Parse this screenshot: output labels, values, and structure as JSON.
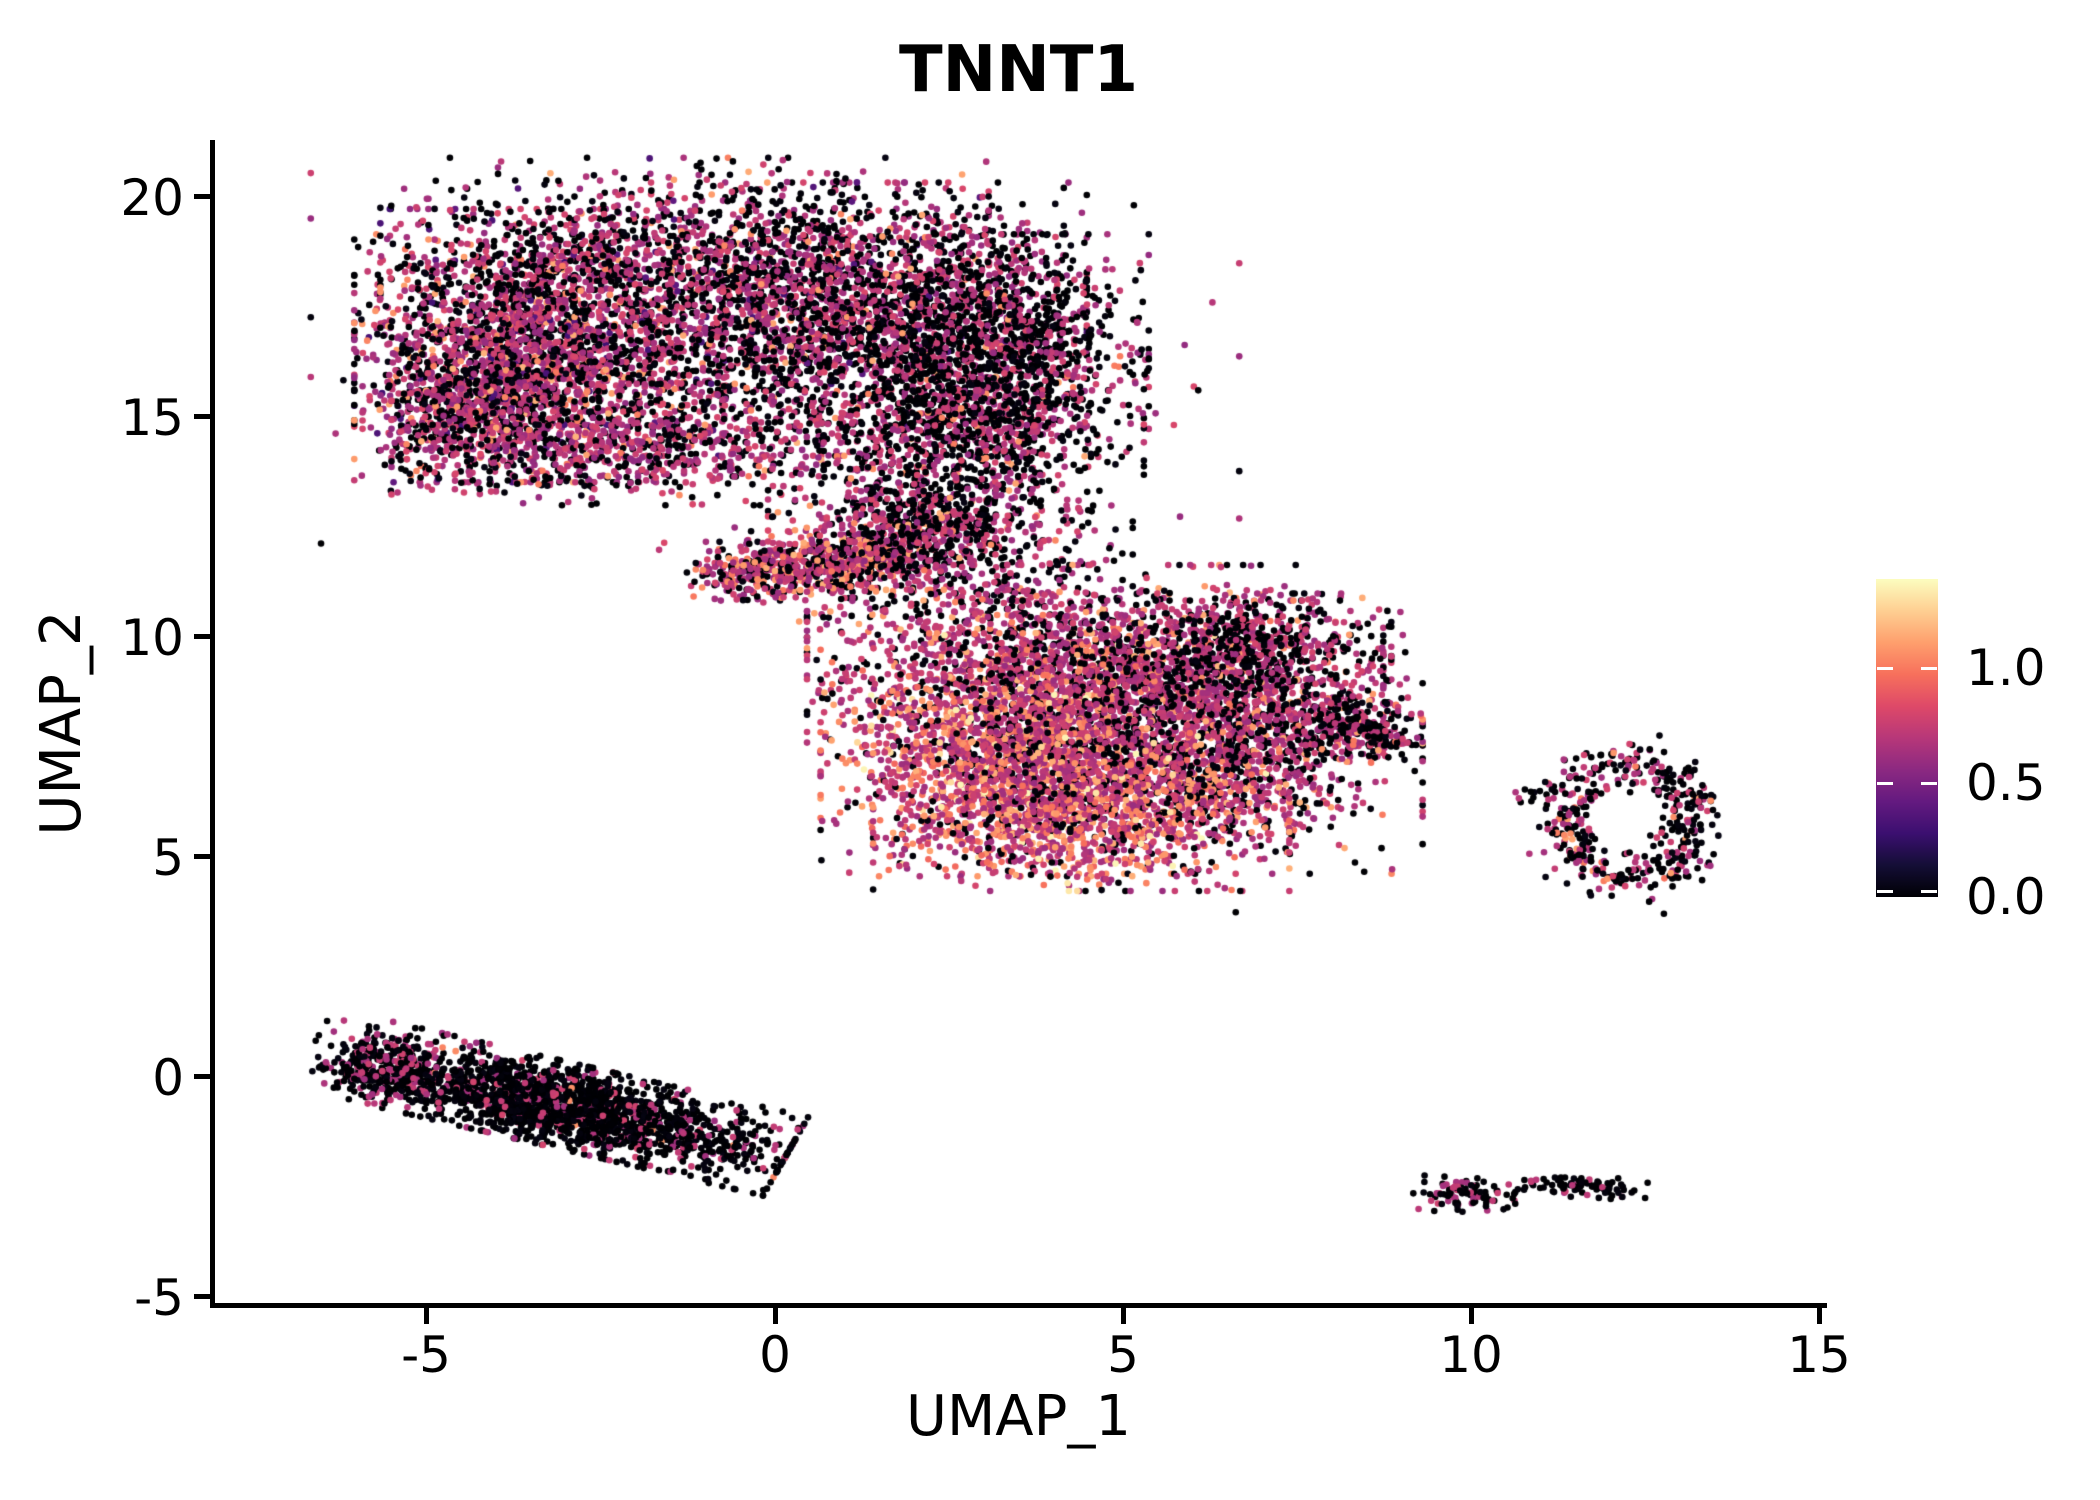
{
  "title": "TNNT1",
  "axes": {
    "x": {
      "label": "UMAP_1",
      "ticks": [
        "-5",
        "0",
        "5",
        "10",
        "15"
      ]
    },
    "y": {
      "label": "UMAP_2",
      "ticks": [
        "20",
        "15",
        "10",
        "5",
        "0",
        "-5"
      ]
    }
  },
  "legend": {
    "labels": [
      "1.0",
      "0.5",
      "0.0"
    ]
  },
  "chart_data": {
    "type": "scatter",
    "title": "TNNT1",
    "xlabel": "UMAP_1",
    "ylabel": "UMAP_2",
    "xlim": [
      -8.1,
      15.1
    ],
    "ylim": [
      -5.2,
      21.3
    ],
    "x_ticks": [
      -5,
      0,
      5,
      10,
      15
    ],
    "y_ticks": [
      -5,
      0,
      5,
      10,
      15,
      20
    ],
    "grid": false,
    "legend_position": "right",
    "colorbar": {
      "label_values": [
        1.0,
        0.5,
        0.0
      ],
      "vmax": 1.39,
      "colormap": "magma",
      "colormap_stops": [
        [
          0.0,
          "#000004"
        ],
        [
          0.1,
          "#140e36"
        ],
        [
          0.2,
          "#3b0f70"
        ],
        [
          0.3,
          "#641a80"
        ],
        [
          0.4,
          "#8c2981"
        ],
        [
          0.5,
          "#b73779"
        ],
        [
          0.6,
          "#de4968"
        ],
        [
          0.7,
          "#f7705c"
        ],
        [
          0.8,
          "#fe9f6d"
        ],
        [
          0.9,
          "#fecf92"
        ],
        [
          1.0,
          "#fcfdbf"
        ]
      ]
    },
    "point_radius_px": 3.3,
    "seed": 12,
    "clusters": [
      {
        "name": "top-lobe-left",
        "cx": -3.4,
        "cy": 16.6,
        "sx": 1.15,
        "sy": 1.35,
        "rot": 0,
        "n": 2300,
        "mix": [
          [
            0.7,
            0.54,
            0.13
          ],
          [
            0,
            0.36,
            0.05
          ],
          [
            1.08,
            0.07,
            0.1
          ],
          [
            0.35,
            0.03,
            0.06
          ]
        ]
      },
      {
        "name": "top-lobe-mid",
        "cx": 0.8,
        "cy": 17.2,
        "sx": 1.6,
        "sy": 1.35,
        "rot": 0,
        "n": 2200,
        "mix": [
          [
            0.7,
            0.45,
            0.12
          ],
          [
            0,
            0.5,
            0.04
          ],
          [
            1.08,
            0.03,
            0.08
          ],
          [
            0.35,
            0.02,
            0.05
          ]
        ]
      },
      {
        "name": "top-lobe-right",
        "cx": 3.3,
        "cy": 16.6,
        "sx": 0.9,
        "sy": 1.1,
        "rot": 0,
        "n": 1100,
        "mix": [
          [
            0,
            0.62,
            0.04
          ],
          [
            0.7,
            0.36,
            0.12
          ],
          [
            1.08,
            0.02,
            0.08
          ]
        ]
      },
      {
        "name": "top-upper-band",
        "cx": -1.3,
        "cy": 18.8,
        "sx": 1.9,
        "sy": 0.9,
        "rot": 0,
        "n": 800,
        "mix": [
          [
            0.7,
            0.45,
            0.12
          ],
          [
            0,
            0.5,
            0.04
          ],
          [
            1.08,
            0.03,
            0.08
          ],
          [
            0.35,
            0.02,
            0.05
          ]
        ]
      },
      {
        "name": "top-left-tip",
        "cx": -4.5,
        "cy": 15.1,
        "sx": 0.62,
        "sy": 0.8,
        "rot": 0,
        "n": 480,
        "mix": [
          [
            0.7,
            0.54,
            0.13
          ],
          [
            0,
            0.36,
            0.05
          ],
          [
            1.08,
            0.07,
            0.1
          ],
          [
            0.35,
            0.03,
            0.06
          ]
        ]
      },
      {
        "name": "top-lower-band",
        "cx": -1.6,
        "cy": 14.35,
        "sx": 1.7,
        "sy": 0.6,
        "rot": 0,
        "n": 650,
        "mix": [
          [
            0.7,
            0.54,
            0.13
          ],
          [
            0,
            0.36,
            0.05
          ],
          [
            1.08,
            0.07,
            0.1
          ]
        ]
      },
      {
        "name": "top-lower-right",
        "cx": 3.0,
        "cy": 14.7,
        "sx": 1.0,
        "sy": 0.85,
        "rot": 0,
        "n": 620,
        "mix": [
          [
            0,
            0.62,
            0.04
          ],
          [
            0.7,
            0.36,
            0.12
          ],
          [
            1.08,
            0.02,
            0.08
          ]
        ]
      },
      {
        "name": "top-fringe",
        "cx": 0.0,
        "cy": 16.6,
        "sx": 2.9,
        "sy": 2.1,
        "rot": 0,
        "n": 330,
        "mix": [
          [
            0.7,
            0.45,
            0.12
          ],
          [
            0,
            0.5,
            0.04
          ],
          [
            1.08,
            0.05,
            0.08
          ]
        ]
      },
      {
        "name": "arm-tip",
        "cx": -0.3,
        "cy": 11.45,
        "sx": 0.42,
        "sy": 0.3,
        "rot": 0,
        "n": 250,
        "mix": [
          [
            0.7,
            0.52,
            0.12
          ],
          [
            0,
            0.3,
            0.04
          ],
          [
            1.08,
            0.18,
            0.1
          ]
        ]
      },
      {
        "name": "arm-a",
        "cx": 0.55,
        "cy": 11.62,
        "sx": 0.5,
        "sy": 0.33,
        "rot": 0,
        "n": 270,
        "mix": [
          [
            0.7,
            0.52,
            0.12
          ],
          [
            0,
            0.3,
            0.04
          ],
          [
            1.08,
            0.18,
            0.1
          ]
        ]
      },
      {
        "name": "arm-b",
        "cx": 1.35,
        "cy": 11.85,
        "sx": 0.5,
        "sy": 0.36,
        "rot": 0,
        "n": 270,
        "mix": [
          [
            0.7,
            0.52,
            0.12
          ],
          [
            0,
            0.3,
            0.04
          ],
          [
            1.08,
            0.18,
            0.1
          ]
        ]
      },
      {
        "name": "arm-c",
        "cx": 2.1,
        "cy": 12.25,
        "sx": 0.52,
        "sy": 0.42,
        "rot": 0,
        "n": 250,
        "mix": [
          [
            0,
            0.52,
            0.04
          ],
          [
            0.7,
            0.45,
            0.12
          ],
          [
            1.08,
            0.03,
            0.08
          ]
        ]
      },
      {
        "name": "bridge-upper",
        "cx": 2.2,
        "cy": 13.1,
        "sx": 1.0,
        "sy": 0.62,
        "rot": 0,
        "n": 370,
        "mix": [
          [
            0,
            0.52,
            0.04
          ],
          [
            0.7,
            0.45,
            0.12
          ],
          [
            1.08,
            0.03,
            0.08
          ]
        ]
      },
      {
        "name": "bridge-right",
        "cx": 3.3,
        "cy": 11.9,
        "sx": 0.8,
        "sy": 1.0,
        "rot": 0,
        "n": 250,
        "mix": [
          [
            0,
            0.52,
            0.04
          ],
          [
            0.7,
            0.45,
            0.12
          ],
          [
            1.08,
            0.03,
            0.08
          ]
        ]
      },
      {
        "name": "bridge-lower",
        "cx": 2.1,
        "cy": 10.8,
        "sx": 0.8,
        "sy": 0.5,
        "rot": 0,
        "n": 120,
        "mix": [
          [
            0.7,
            0.52,
            0.12
          ],
          [
            0,
            0.3,
            0.04
          ],
          [
            1.08,
            0.18,
            0.1
          ]
        ]
      },
      {
        "name": "central-top",
        "cx": 4.6,
        "cy": 9.2,
        "sx": 1.8,
        "sy": 1.05,
        "rot": 0,
        "n": 1900,
        "mix": [
          [
            0.7,
            0.64,
            0.1
          ],
          [
            0,
            0.26,
            0.04
          ],
          [
            1.08,
            0.09,
            0.1
          ],
          [
            1.32,
            0.01,
            0.05
          ]
        ]
      },
      {
        "name": "central-left",
        "cx": 3.3,
        "cy": 7.3,
        "sx": 1.15,
        "sy": 1.2,
        "rot": 0,
        "n": 1500,
        "mix": [
          [
            0.7,
            0.52,
            0.1
          ],
          [
            1.05,
            0.32,
            0.12
          ],
          [
            0,
            0.12,
            0.03
          ],
          [
            1.32,
            0.04,
            0.06
          ]
        ]
      },
      {
        "name": "central-right",
        "cx": 6.2,
        "cy": 7.7,
        "sx": 1.35,
        "sy": 1.35,
        "rot": 0,
        "n": 1650,
        "mix": [
          [
            0.7,
            0.5,
            0.1
          ],
          [
            0,
            0.4,
            0.04
          ],
          [
            1.08,
            0.1,
            0.1
          ]
        ]
      },
      {
        "name": "central-bottom",
        "cx": 4.4,
        "cy": 6.0,
        "sx": 1.3,
        "sy": 0.78,
        "rot": 0,
        "n": 1100,
        "mix": [
          [
            0.7,
            0.52,
            0.1
          ],
          [
            1.05,
            0.32,
            0.12
          ],
          [
            0,
            0.12,
            0.03
          ],
          [
            1.32,
            0.04,
            0.06
          ]
        ]
      },
      {
        "name": "central-tail",
        "cx": 7.9,
        "cy": 7.95,
        "sx": 0.6,
        "sy": 0.42,
        "rot": 0,
        "n": 280,
        "mix": [
          [
            0,
            0.5,
            0.04
          ],
          [
            0.7,
            0.46,
            0.1
          ],
          [
            1.05,
            0.04,
            0.08
          ]
        ]
      },
      {
        "name": "central-tail-tip",
        "cx": 8.75,
        "cy": 7.65,
        "sx": 0.22,
        "sy": 0.18,
        "rot": 0,
        "n": 40,
        "mix": [
          [
            0,
            0.5,
            0.04
          ],
          [
            0.7,
            0.46,
            0.1
          ],
          [
            1.05,
            0.04,
            0.08
          ]
        ]
      },
      {
        "name": "central-ne-edge",
        "cx": 6.9,
        "cy": 9.7,
        "sx": 0.85,
        "sy": 0.55,
        "rot": 0,
        "n": 380,
        "mix": [
          [
            0,
            0.62,
            0.04
          ],
          [
            0.7,
            0.38,
            0.1
          ]
        ]
      },
      {
        "name": "lower-left-body",
        "cx": -2.95,
        "cy": -0.7,
        "sx": 1.5,
        "sy": 0.43,
        "rot": -20,
        "n": 1950,
        "clamp": 2.2,
        "mix": [
          [
            0,
            0.84,
            0.04
          ],
          [
            0.7,
            0.15,
            0.1
          ],
          [
            1.05,
            0.01,
            0.05
          ]
        ]
      },
      {
        "name": "lower-left-head",
        "cx": -5.65,
        "cy": 0.18,
        "sx": 0.48,
        "sy": 0.36,
        "rot": -20,
        "n": 320,
        "mix": [
          [
            0,
            0.7,
            0.04
          ],
          [
            0.7,
            0.3,
            0.08
          ]
        ]
      },
      {
        "name": "right-ring",
        "type": "ring",
        "cx": 12.3,
        "cy": 5.75,
        "r": 1.0,
        "sr": 0.22,
        "rx": 0.95,
        "ry": 1.3,
        "n": 430,
        "mix": [
          [
            0,
            0.6,
            0.04
          ],
          [
            0.7,
            0.34,
            0.1
          ],
          [
            1.05,
            0.06,
            0.08
          ]
        ]
      },
      {
        "name": "ring-left-trail",
        "cx": 11.05,
        "cy": 6.5,
        "sx": 0.32,
        "sy": 0.13,
        "rot": 0,
        "n": 22,
        "mix": [
          [
            0,
            0.7,
            0.04
          ],
          [
            0.7,
            0.3,
            0.08
          ]
        ]
      },
      {
        "name": "bottom-right-a",
        "cx": 9.9,
        "cy": -2.72,
        "sx": 0.32,
        "sy": 0.2,
        "rot": 0,
        "n": 95,
        "mix": [
          [
            0,
            0.66,
            0.03
          ],
          [
            0.7,
            0.34,
            0.08
          ]
        ]
      },
      {
        "name": "bottom-right-b",
        "cx": 11.6,
        "cy": -2.55,
        "sx": 0.4,
        "sy": 0.12,
        "rot": -6,
        "n": 85,
        "mix": [
          [
            0,
            0.88,
            0.03
          ],
          [
            0.7,
            0.12,
            0.06
          ]
        ]
      }
    ],
    "singletons": [
      [
        10.62,
        -2.68,
        0
      ],
      [
        6.62,
        3.72,
        0
      ]
    ]
  }
}
